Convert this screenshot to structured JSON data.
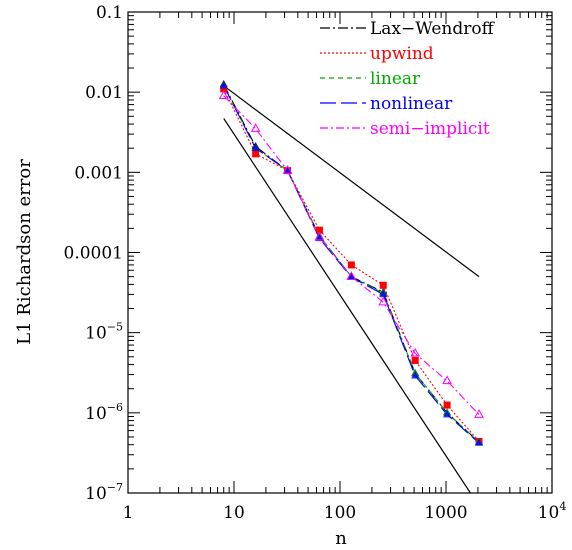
{
  "chart_data": {
    "type": "line",
    "xlabel": "n",
    "ylabel": "L1 Richardson error",
    "xscale": "log",
    "yscale": "log",
    "xlim": [
      1,
      10000
    ],
    "ylim": [
      1e-07,
      0.1
    ],
    "grid": false,
    "legend_position": "top-right",
    "x_ticks": [
      {
        "value": 1,
        "label": "1"
      },
      {
        "value": 10,
        "label": "10"
      },
      {
        "value": 100,
        "label": "100"
      },
      {
        "value": 1000,
        "label": "1000"
      },
      {
        "value": 10000,
        "base": "10",
        "exp": "4"
      }
    ],
    "y_ticks": [
      {
        "value": 0.1,
        "label": "0.1"
      },
      {
        "value": 0.01,
        "label": "0.01"
      },
      {
        "value": 0.001,
        "label": "0.001"
      },
      {
        "value": 0.0001,
        "label": "0.0001"
      },
      {
        "value": 1e-05,
        "base": "10",
        "exp": "−5"
      },
      {
        "value": 1e-06,
        "base": "10",
        "exp": "−6"
      },
      {
        "value": 1e-07,
        "base": "10",
        "exp": "−7"
      }
    ],
    "x": [
      8,
      16,
      32,
      64,
      128,
      256,
      512,
      1024,
      2048
    ],
    "series": [
      {
        "name": "Lax−Wendroff",
        "color": "#000000",
        "dash": "10 3 2 3",
        "marker": "triangle",
        "values": [
          0.0125,
          0.0021,
          0.00105,
          0.00016,
          5e-05,
          3.2e-05,
          3.1e-06,
          1e-06,
          4.3e-07
        ]
      },
      {
        "name": "upwind",
        "color": "#ff0000",
        "dash": "2 2",
        "marker": "square",
        "values": [
          0.011,
          0.0017,
          0.00105,
          0.00019,
          7e-05,
          3.9e-05,
          4.5e-06,
          1.25e-06,
          4.4e-07
        ]
      },
      {
        "name": "linear",
        "color": "#00aa00",
        "dash": "5 4",
        "marker": "triangle",
        "values": [
          0.012,
          0.002,
          0.00105,
          0.00016,
          5e-05,
          3.1e-05,
          3.1e-06,
          1e-06,
          4.3e-07
        ]
      },
      {
        "name": "nonlinear",
        "color": "#0000ff",
        "dash": "16 5",
        "marker": "triangle",
        "values": [
          0.012,
          0.002,
          0.00105,
          0.00015,
          4.9e-05,
          3e-05,
          2.9e-06,
          9.5e-07,
          4.2e-07
        ]
      },
      {
        "name": "semi−implicit",
        "color": "#ff00ff",
        "dash": "8 3 2 3",
        "marker": "open-triangle",
        "values": [
          0.009,
          0.0035,
          0.00105,
          0.000155,
          5e-05,
          2.4e-05,
          5.5e-06,
          2.5e-06,
          9.5e-07
        ]
      }
    ],
    "reference_lines": [
      {
        "color": "#000000",
        "points": [
          [
            8,
            0.012
          ],
          [
            2048,
            5e-05
          ]
        ]
      },
      {
        "color": "#000000",
        "points": [
          [
            8,
            0.0047
          ],
          [
            1700,
            1e-07
          ]
        ]
      }
    ]
  }
}
